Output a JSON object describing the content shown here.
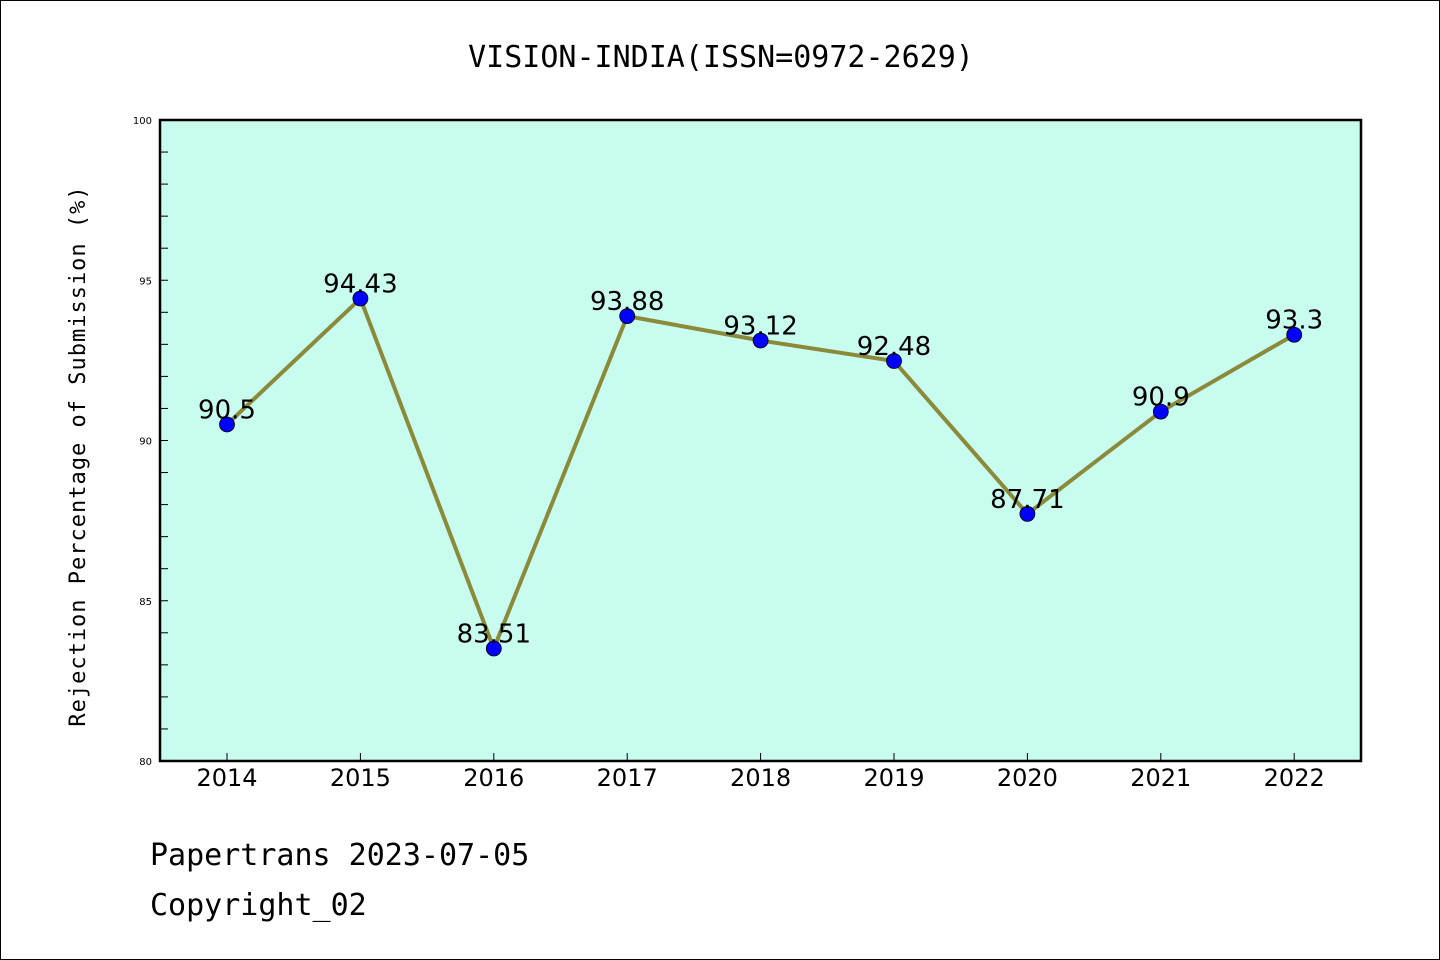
{
  "chart_data": {
    "type": "line",
    "title": "VISION-INDIA(ISSN=0972-2629)",
    "xlabel": "",
    "ylabel": "Rejection Percentage of Submission (%)",
    "categories": [
      "2014",
      "2015",
      "2016",
      "2017",
      "2018",
      "2019",
      "2020",
      "2021",
      "2022"
    ],
    "values": [
      90.5,
      94.43,
      83.51,
      93.88,
      93.12,
      92.48,
      87.71,
      90.9,
      93.3
    ],
    "data_labels": [
      "90.5",
      "94.43",
      "83.51",
      "93.88",
      "93.12",
      "92.48",
      "87.71",
      "90.9",
      "93.3"
    ],
    "ylim": [
      80,
      100
    ],
    "yticks": [
      80,
      85,
      90,
      95,
      100
    ],
    "ytick_labels": [
      "80",
      "85",
      "90",
      "95",
      "100"
    ],
    "grid": false,
    "colors": {
      "plot_background": "#c8fcee",
      "line": "#8b8a3a",
      "marker": "#0000ff"
    }
  },
  "footer": {
    "line1": "Papertrans 2023-07-05",
    "line2": "Copyright_02"
  }
}
